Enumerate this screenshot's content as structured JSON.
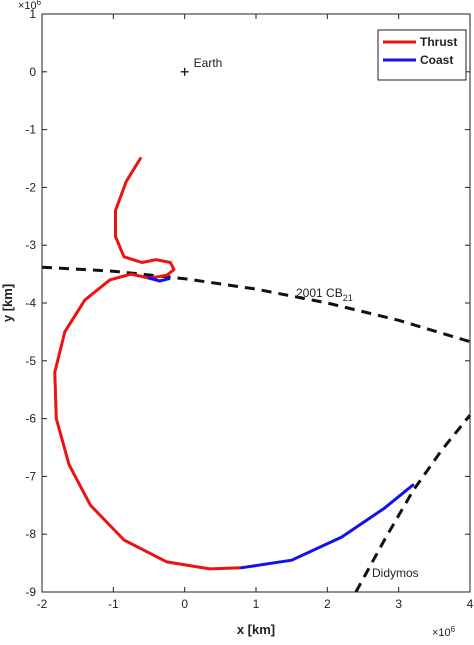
{
  "chart_data": {
    "type": "line",
    "xlabel": "x [km]",
    "ylabel": "y [km]",
    "x_multiplier": {
      "base": "×10",
      "exp": "6"
    },
    "y_multiplier": {
      "base": "×10",
      "exp": "6"
    },
    "xlim": [
      -2,
      4
    ],
    "ylim": [
      -9,
      1
    ],
    "xticks": [
      -2,
      -1,
      0,
      1,
      2,
      3,
      4
    ],
    "yticks": [
      -9,
      -8,
      -7,
      -6,
      -5,
      -4,
      -3,
      -2,
      -1,
      0,
      1
    ],
    "legend": "top-right",
    "series": [
      {
        "name": "Thrust",
        "color": "#ee1111",
        "x": [
          -0.62,
          -0.82,
          -0.97,
          -0.97,
          -0.85,
          -0.6,
          -0.4,
          -0.2,
          -0.15,
          -0.25,
          -0.5,
          null,
          -0.5,
          -0.75,
          -1.05,
          -1.4,
          -1.68,
          -1.82,
          -1.8,
          -1.62,
          -1.32,
          -0.85,
          -0.25,
          0.35,
          0.8
        ],
        "values": [
          -1.5,
          -1.9,
          -2.4,
          -2.85,
          -3.2,
          -3.3,
          -3.25,
          -3.3,
          -3.42,
          -3.52,
          -3.57,
          null,
          -3.57,
          -3.5,
          -3.6,
          -3.95,
          -4.5,
          -5.2,
          -6.0,
          -6.8,
          -7.5,
          -8.1,
          -8.48,
          -8.6,
          -8.58
        ]
      },
      {
        "name": "Coast",
        "color": "#1111ee",
        "x": [
          -0.5,
          -0.35,
          -0.22,
          null,
          0.8,
          1.5,
          2.2,
          2.8,
          3.2
        ],
        "values": [
          -3.57,
          -3.62,
          -3.58,
          null,
          -8.58,
          -8.45,
          -8.05,
          -7.55,
          -7.15
        ]
      }
    ],
    "orbits": [
      {
        "label": {
          "text": "2001 CB",
          "sub": "21"
        },
        "x": [
          -2,
          -1,
          0,
          1,
          2,
          3,
          4
        ],
        "values": [
          -3.38,
          -3.45,
          -3.58,
          -3.76,
          -4.0,
          -4.3,
          -4.67
        ]
      },
      {
        "label": {
          "text": "Didymos"
        },
        "x": [
          2.4,
          2.8,
          3.2,
          3.6,
          4
        ],
        "values": [
          -9,
          -8.1,
          -7.25,
          -6.55,
          -5.94
        ]
      }
    ],
    "markers": [
      {
        "label": "Earth",
        "x": 0,
        "y": 0
      }
    ]
  }
}
